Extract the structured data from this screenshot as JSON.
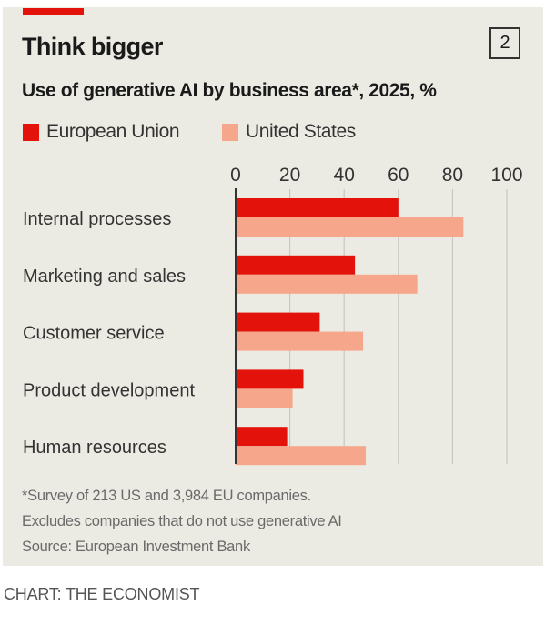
{
  "header": {
    "title": "Think bigger",
    "chart_number": "2",
    "subtitle": "Use of generative AI by business area*, 2025, %"
  },
  "colors": {
    "accent": "#e3120b",
    "eu": "#e3120b",
    "us": "#f6a68a",
    "background": "#ecebe3",
    "gridline": "#c9c8c0",
    "axis": "#333333"
  },
  "legend": [
    {
      "label": "European Union",
      "color": "#e3120b"
    },
    {
      "label": "United States",
      "color": "#f6a68a"
    }
  ],
  "chart_data": {
    "type": "bar",
    "orientation": "horizontal",
    "title": "Think bigger",
    "subtitle": "Use of generative AI by business area*, 2025, %",
    "xlabel": "",
    "ylabel": "",
    "xlim": [
      0,
      100
    ],
    "xticks": [
      0,
      20,
      40,
      60,
      80,
      100
    ],
    "tick_labels": [
      "0",
      "20",
      "40",
      "60",
      "80",
      "100"
    ],
    "grid": true,
    "legend_position": "top-left",
    "categories": [
      "Internal processes",
      "Marketing and sales",
      "Customer service",
      "Product development",
      "Human resources"
    ],
    "series": [
      {
        "name": "European Union",
        "color": "#e3120b",
        "values": [
          60,
          44,
          31,
          25,
          19
        ]
      },
      {
        "name": "United States",
        "color": "#f6a68a",
        "values": [
          84,
          67,
          47,
          21,
          48
        ]
      }
    ]
  },
  "footnote": {
    "lines": [
      "*Survey of 213 US and 3,984 EU companies.",
      "Excludes companies that do not use generative AI",
      "Source: European Investment Bank"
    ]
  },
  "credit": "CHART: THE ECONOMIST"
}
